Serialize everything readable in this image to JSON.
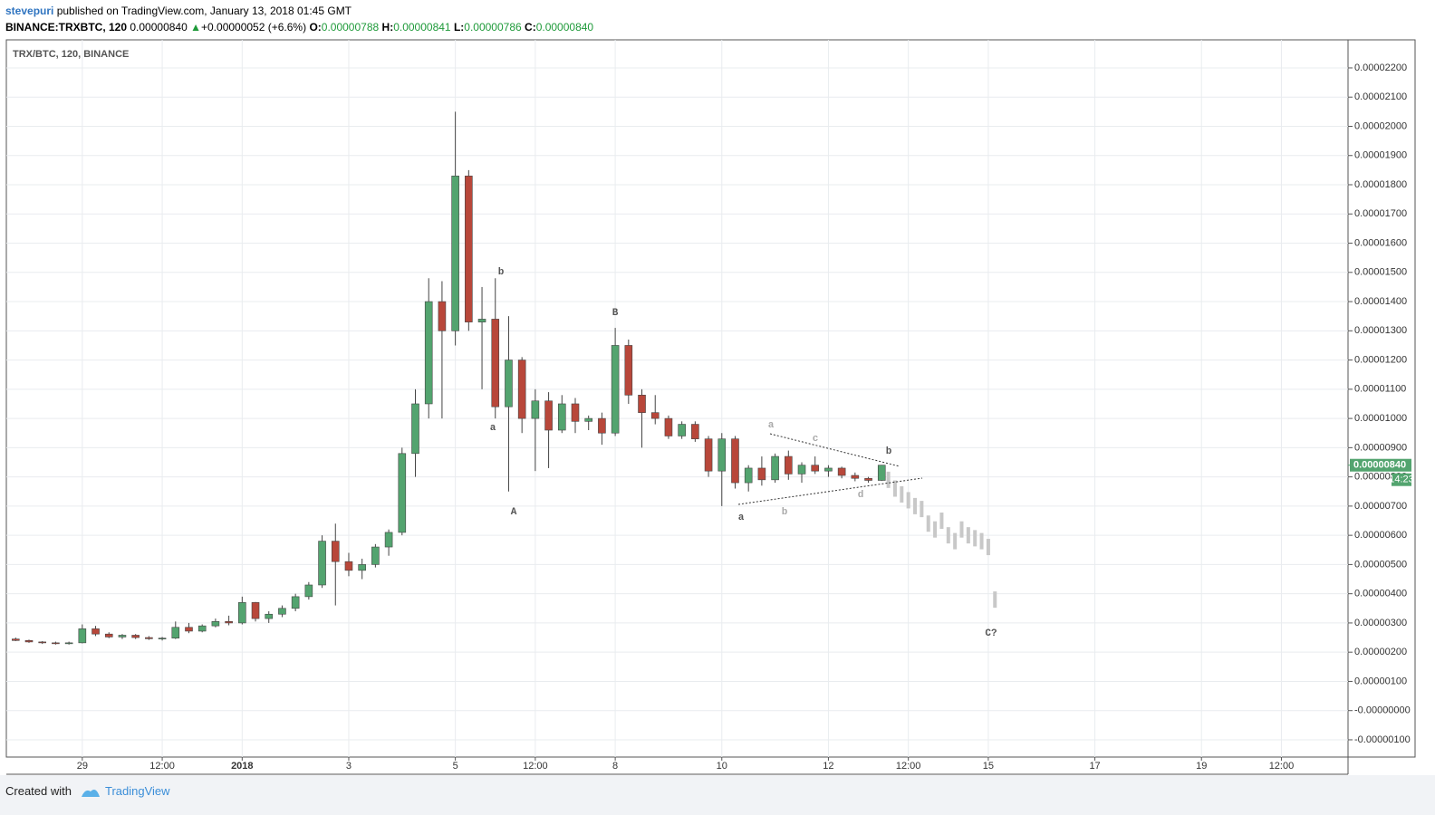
{
  "header": {
    "author": "stevepuri",
    "published": "published on TradingView.com, January 13, 2018 01:45 GMT",
    "symbol": "BINANCE:TRXBTC, 120",
    "last": "0.00000840",
    "arrow": "▲",
    "change": "+0.00000052 (+6.6%)",
    "ohlc": [
      {
        "key": "O:",
        "value": "0.00000788"
      },
      {
        "key": "H:",
        "value": "0.00000841"
      },
      {
        "key": "L:",
        "value": "0.00000786"
      },
      {
        "key": "C:",
        "value": "0.00000840"
      }
    ]
  },
  "footer": {
    "created": "Created with",
    "brand": "TradingView"
  },
  "chart_data": {
    "type": "candlestick",
    "title": "TRX/BTC, 120, BINANCE",
    "up_color": "#53a46f",
    "down_color": "#b8473a",
    "projection_color": "#c8c8c8",
    "grid": true,
    "last_price_label": "0.00000840",
    "countdown": "14:23",
    "xlim": [
      -0.7,
      100
    ],
    "xticks": [
      {
        "value": 5,
        "label": "29"
      },
      {
        "value": 11,
        "label": "12:00"
      },
      {
        "value": 17,
        "label": "2018"
      },
      {
        "value": 25,
        "label": "3"
      },
      {
        "value": 33,
        "label": "5"
      },
      {
        "value": 39,
        "label": "12:00"
      },
      {
        "value": 45,
        "label": "8"
      },
      {
        "value": 53,
        "label": "10"
      },
      {
        "value": 61,
        "label": "12"
      },
      {
        "value": 67,
        "label": "12:00"
      },
      {
        "value": 73,
        "label": "15"
      },
      {
        "value": 81,
        "label": "17"
      },
      {
        "value": 89,
        "label": "19"
      },
      {
        "value": 95,
        "label": "12:00"
      }
    ],
    "ylim": [
      -1.59e-06,
      2.296e-05
    ],
    "yticks": [
      {
        "value": 2.2e-05,
        "label": "0.00002200"
      },
      {
        "value": 2.1e-05,
        "label": "0.00002100"
      },
      {
        "value": 2e-05,
        "label": "0.00002000"
      },
      {
        "value": 1.9e-05,
        "label": "0.00001900"
      },
      {
        "value": 1.8e-05,
        "label": "0.00001800"
      },
      {
        "value": 1.7e-05,
        "label": "0.00001700"
      },
      {
        "value": 1.6e-05,
        "label": "0.00001600"
      },
      {
        "value": 1.5e-05,
        "label": "0.00001500"
      },
      {
        "value": 1.4e-05,
        "label": "0.00001400"
      },
      {
        "value": 1.3e-05,
        "label": "0.00001300"
      },
      {
        "value": 1.2e-05,
        "label": "0.00001200"
      },
      {
        "value": 1.1e-05,
        "label": "0.00001100"
      },
      {
        "value": 1e-05,
        "label": "0.00001000"
      },
      {
        "value": 9e-06,
        "label": "0.00000900"
      },
      {
        "value": 8e-06,
        "label": "0.00000800"
      },
      {
        "value": 7e-06,
        "label": "0.00000700"
      },
      {
        "value": 6e-06,
        "label": "0.00000600"
      },
      {
        "value": 5e-06,
        "label": "0.00000500"
      },
      {
        "value": 4e-06,
        "label": "0.00000400"
      },
      {
        "value": 3e-06,
        "label": "0.00000300"
      },
      {
        "value": 2e-06,
        "label": "0.00000200"
      },
      {
        "value": 1e-06,
        "label": "0.00000100"
      },
      {
        "value": 0,
        "label": "-0.00000000"
      },
      {
        "value": -1e-06,
        "label": "-0.00000100"
      }
    ],
    "open": [
      2.45e-06,
      2.4e-06,
      2.35e-06,
      2.32e-06,
      2.3e-06,
      2.32e-06,
      2.8e-06,
      2.62e-06,
      2.52e-06,
      2.58e-06,
      2.5e-06,
      2.46e-06,
      2.48e-06,
      2.85e-06,
      2.72e-06,
      2.9e-06,
      3.05e-06,
      3e-06,
      3.7e-06,
      3.15e-06,
      3.3e-06,
      3.5e-06,
      3.9e-06,
      4.3e-06,
      5.8e-06,
      5.1e-06,
      4.8e-06,
      5e-06,
      5.6e-06,
      6.1e-06,
      8.8e-06,
      1.05e-05,
      1.4e-05,
      1.3e-05,
      1.83e-05,
      1.33e-05,
      1.34e-05,
      1.04e-05,
      1.2e-05,
      1e-05,
      1.06e-05,
      9.6e-06,
      1.05e-05,
      9.9e-06,
      1e-05,
      9.5e-06,
      1.25e-05,
      1.08e-05,
      1.02e-05,
      1e-05,
      9.4e-06,
      9.8e-06,
      9.3e-06,
      8.2e-06,
      9.3e-06,
      7.8e-06,
      8.3e-06,
      7.9e-06,
      8.7e-06,
      8.1e-06,
      8.4e-06,
      8.2e-06,
      8.3e-06,
      8.05e-06,
      7.95e-06,
      7.88e-06
    ],
    "high": [
      2.5e-06,
      2.43e-06,
      2.38e-06,
      2.36e-06,
      2.36e-06,
      2.95e-06,
      2.9e-06,
      2.68e-06,
      2.62e-06,
      2.62e-06,
      2.55e-06,
      2.52e-06,
      3.05e-06,
      3e-06,
      2.95e-06,
      3.15e-06,
      3.25e-06,
      3.9e-06,
      3.72e-06,
      3.4e-06,
      3.6e-06,
      4e-06,
      4.4e-06,
      6e-06,
      6.4e-06,
      5.4e-06,
      5.2e-06,
      5.7e-06,
      6.2e-06,
      9e-06,
      1.1e-05,
      1.48e-05,
      1.47e-05,
      2.05e-05,
      1.85e-05,
      1.45e-05,
      1.48e-05,
      1.35e-05,
      1.21e-05,
      1.1e-05,
      1.09e-05,
      1.08e-05,
      1.07e-05,
      1.01e-05,
      1.02e-05,
      1.31e-05,
      1.27e-05,
      1.1e-05,
      1.08e-05,
      1.01e-05,
      9.9e-06,
      9.9e-06,
      9.4e-06,
      9.5e-06,
      9.4e-06,
      8.4e-06,
      8.7e-06,
      8.8e-06,
      8.9e-06,
      8.5e-06,
      8.7e-06,
      8.4e-06,
      8.35e-06,
      8.15e-06,
      8e-06,
      8.41e-06
    ],
    "low": [
      2.38e-06,
      2.32e-06,
      2.28e-06,
      2.26e-06,
      2.26e-06,
      2.3e-06,
      2.55e-06,
      2.48e-06,
      2.45e-06,
      2.45e-06,
      2.42e-06,
      2.4e-06,
      2.45e-06,
      2.65e-06,
      2.68e-06,
      2.85e-06,
      2.92e-06,
      2.95e-06,
      3.05e-06,
      3e-06,
      3.2e-06,
      3.4e-06,
      3.8e-06,
      4.2e-06,
      3.6e-06,
      4.6e-06,
      4.5e-06,
      4.9e-06,
      5.3e-06,
      6e-06,
      8e-06,
      1e-05,
      1e-05,
      1.25e-05,
      1.3e-05,
      1.1e-05,
      1e-05,
      7.5e-06,
      9.5e-06,
      8.2e-06,
      8.3e-06,
      9.5e-06,
      9.5e-06,
      9.6e-06,
      9.1e-06,
      9.4e-06,
      1.05e-05,
      9e-06,
      9.8e-06,
      9.3e-06,
      9.3e-06,
      9.2e-06,
      8e-06,
      7e-06,
      7.6e-06,
      7.5e-06,
      7.7e-06,
      7.8e-06,
      7.9e-06,
      7.8e-06,
      8.1e-06,
      8e-06,
      7.95e-06,
      7.85e-06,
      7.8e-06,
      7.86e-06
    ],
    "close": [
      2.4e-06,
      2.35e-06,
      2.32e-06,
      2.3e-06,
      2.32e-06,
      2.8e-06,
      2.62e-06,
      2.52e-06,
      2.58e-06,
      2.5e-06,
      2.46e-06,
      2.48e-06,
      2.85e-06,
      2.72e-06,
      2.9e-06,
      3.05e-06,
      3e-06,
      3.7e-06,
      3.15e-06,
      3.3e-06,
      3.5e-06,
      3.9e-06,
      4.3e-06,
      5.8e-06,
      5.1e-06,
      4.8e-06,
      5e-06,
      5.6e-06,
      6.1e-06,
      8.8e-06,
      1.05e-05,
      1.4e-05,
      1.3e-05,
      1.83e-05,
      1.33e-05,
      1.34e-05,
      1.04e-05,
      1.2e-05,
      1e-05,
      1.06e-05,
      9.6e-06,
      1.05e-05,
      9.9e-06,
      1e-05,
      9.5e-06,
      1.25e-05,
      1.08e-05,
      1.02e-05,
      1e-05,
      9.4e-06,
      9.8e-06,
      9.3e-06,
      8.2e-06,
      9.3e-06,
      7.8e-06,
      8.3e-06,
      7.9e-06,
      8.7e-06,
      8.1e-06,
      8.4e-06,
      8.2e-06,
      8.3e-06,
      8.05e-06,
      7.95e-06,
      7.88e-06,
      8.4e-06
    ],
    "projection": {
      "x": [
        65.5,
        66,
        66.5,
        67,
        67.5,
        68,
        68.5,
        69,
        69.5,
        70,
        70.5,
        71,
        71.5,
        72,
        72.5,
        73,
        73.5
      ],
      "values": [
        7.9e-06,
        7.6e-06,
        7.4e-06,
        7.2e-06,
        7e-06,
        6.9e-06,
        6.4e-06,
        6.2e-06,
        6.5e-06,
        6e-06,
        5.8e-06,
        6.2e-06,
        6e-06,
        5.9e-06,
        5.8e-06,
        5.6e-06,
        3.8e-06
      ]
    },
    "annotations": [
      "b",
      "B",
      "a",
      "A",
      "a",
      "c",
      "b",
      "d",
      "b",
      "a",
      "C?"
    ]
  }
}
